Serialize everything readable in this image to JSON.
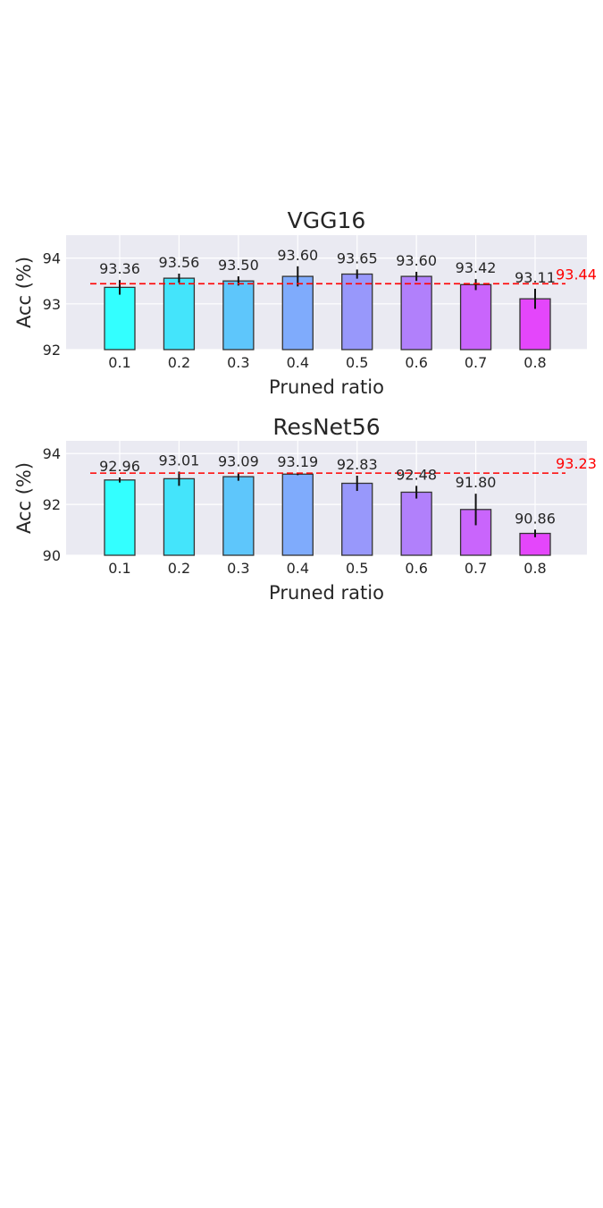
{
  "chart_data": [
    {
      "type": "bar",
      "title": "VGG16",
      "xlabel": "Pruned ratio",
      "ylabel": "Acc (%)",
      "categories": [
        "0.1",
        "0.2",
        "0.3",
        "0.4",
        "0.5",
        "0.6",
        "0.7",
        "0.8"
      ],
      "values": [
        93.36,
        93.56,
        93.5,
        93.6,
        93.65,
        93.6,
        93.42,
        93.11
      ],
      "value_labels": [
        "93.36",
        "93.56",
        "93.50",
        "93.60",
        "93.65",
        "93.60",
        "93.42",
        "93.11"
      ],
      "errors": [
        0.16,
        0.1,
        0.1,
        0.22,
        0.1,
        0.1,
        0.12,
        0.22
      ],
      "ylim": [
        92,
        94.5
      ],
      "yticks": [
        "92",
        "93",
        "94"
      ],
      "baseline": {
        "value": 93.44,
        "label": "93.44",
        "color": "#ff0000"
      },
      "grid": true,
      "bar_colors": [
        "#33ffff",
        "#44e4fb",
        "#5ec6fb",
        "#7fabfc",
        "#9898fb",
        "#b180fb",
        "#c965fc",
        "#e446fb"
      ]
    },
    {
      "type": "bar",
      "title": "ResNet56",
      "xlabel": "Pruned ratio",
      "ylabel": "Acc (%)",
      "categories": [
        "0.1",
        "0.2",
        "0.3",
        "0.4",
        "0.5",
        "0.6",
        "0.7",
        "0.8"
      ],
      "values": [
        92.96,
        93.01,
        93.09,
        93.19,
        92.83,
        92.48,
        91.8,
        90.86
      ],
      "value_labels": [
        "92.96",
        "93.01",
        "93.09",
        "93.19",
        "92.83",
        "92.48",
        "91.80",
        "90.86"
      ],
      "errors": [
        0.1,
        0.28,
        0.16,
        0.04,
        0.3,
        0.25,
        0.62,
        0.15
      ],
      "ylim": [
        90,
        94.5
      ],
      "yticks": [
        "90",
        "92",
        "94"
      ],
      "baseline": {
        "value": 93.23,
        "label": "93.23",
        "color": "#ff0000"
      },
      "grid": true,
      "bar_colors": [
        "#33ffff",
        "#44e4fb",
        "#5ec6fb",
        "#7fabfc",
        "#9898fb",
        "#b180fb",
        "#c965fc",
        "#e446fb"
      ]
    }
  ]
}
